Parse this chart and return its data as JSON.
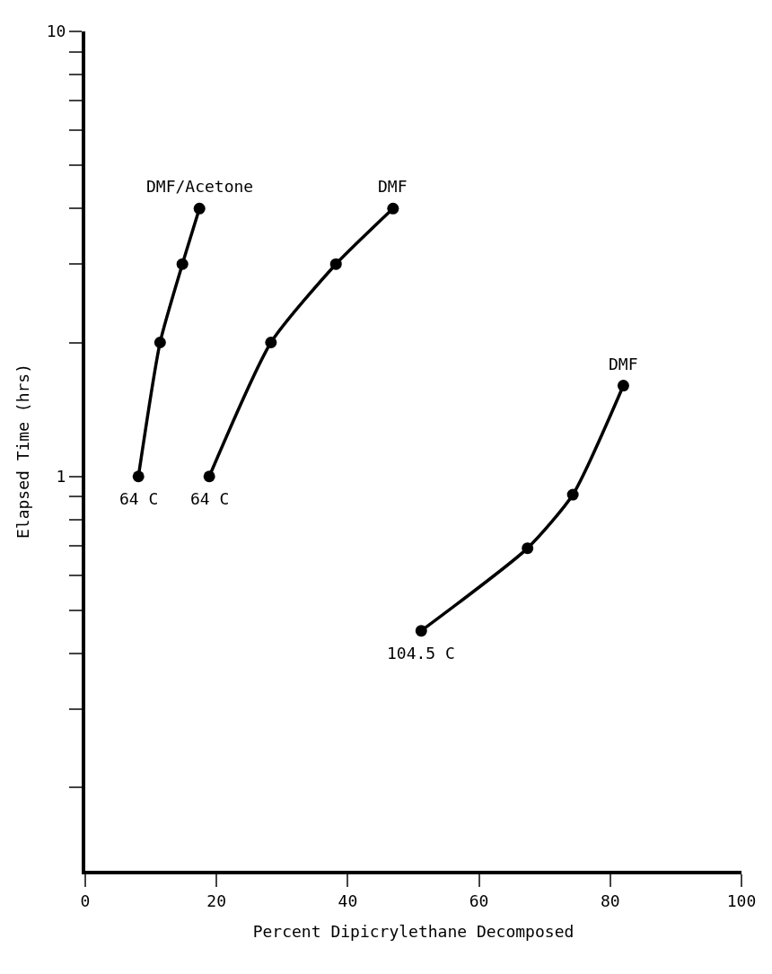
{
  "chart_data": {
    "type": "line",
    "xlabel": "Percent Dipicrylethane Decomposed",
    "ylabel": "Elapsed Time (hrs)",
    "log": "y",
    "grid": false,
    "marker": "circle",
    "line_style": "solid",
    "xlim": [
      0,
      100
    ],
    "xticks": [
      0,
      20,
      40,
      60,
      80,
      100
    ],
    "ylim": [
      0.13,
      10
    ],
    "yticks": [
      {
        "value": 0.2,
        "label": null
      },
      {
        "value": 0.3,
        "label": null
      },
      {
        "value": 0.4,
        "label": null
      },
      {
        "value": 0.5,
        "label": null
      },
      {
        "value": 0.6,
        "label": null
      },
      {
        "value": 0.7,
        "label": null
      },
      {
        "value": 0.8,
        "label": null
      },
      {
        "value": 0.9,
        "label": null
      },
      1,
      {
        "value": 2,
        "label": null
      },
      {
        "value": 3,
        "label": null
      },
      {
        "value": 4,
        "label": null
      },
      {
        "value": 5,
        "label": null
      },
      {
        "value": 6,
        "label": null
      },
      {
        "value": 7,
        "label": null
      },
      {
        "value": 8,
        "label": null
      },
      {
        "value": 9,
        "label": null
      },
      10
    ],
    "series": [
      {
        "color": "#000000",
        "x": [
          8.1,
          11.4,
          14.8,
          17.4
        ],
        "values": [
          1,
          2,
          3,
          4
        ]
      },
      {
        "color": "#000000",
        "x": [
          18.9,
          28.3,
          38.2,
          46.9
        ],
        "values": [
          1,
          2,
          3,
          4
        ]
      },
      {
        "color": "#000000",
        "x": [
          51.2,
          67.4,
          74.3,
          82.0
        ],
        "values": [
          0.45,
          0.69,
          0.91,
          1.6
        ]
      }
    ],
    "annotations": [
      {
        "text": "DMF/Acetone",
        "x": 17.4,
        "y": 4
      },
      {
        "text": "DMF",
        "x": 46.9,
        "y": 4
      },
      {
        "text": "DMF",
        "x": 82.0,
        "y": 1.6
      },
      {
        "text": "64 C",
        "x": 8.1,
        "y": 1
      },
      {
        "text": "64 C",
        "x": 18.9,
        "y": 1
      },
      {
        "text": "104.5 C",
        "x": 51.2,
        "y": 0.45
      }
    ]
  }
}
